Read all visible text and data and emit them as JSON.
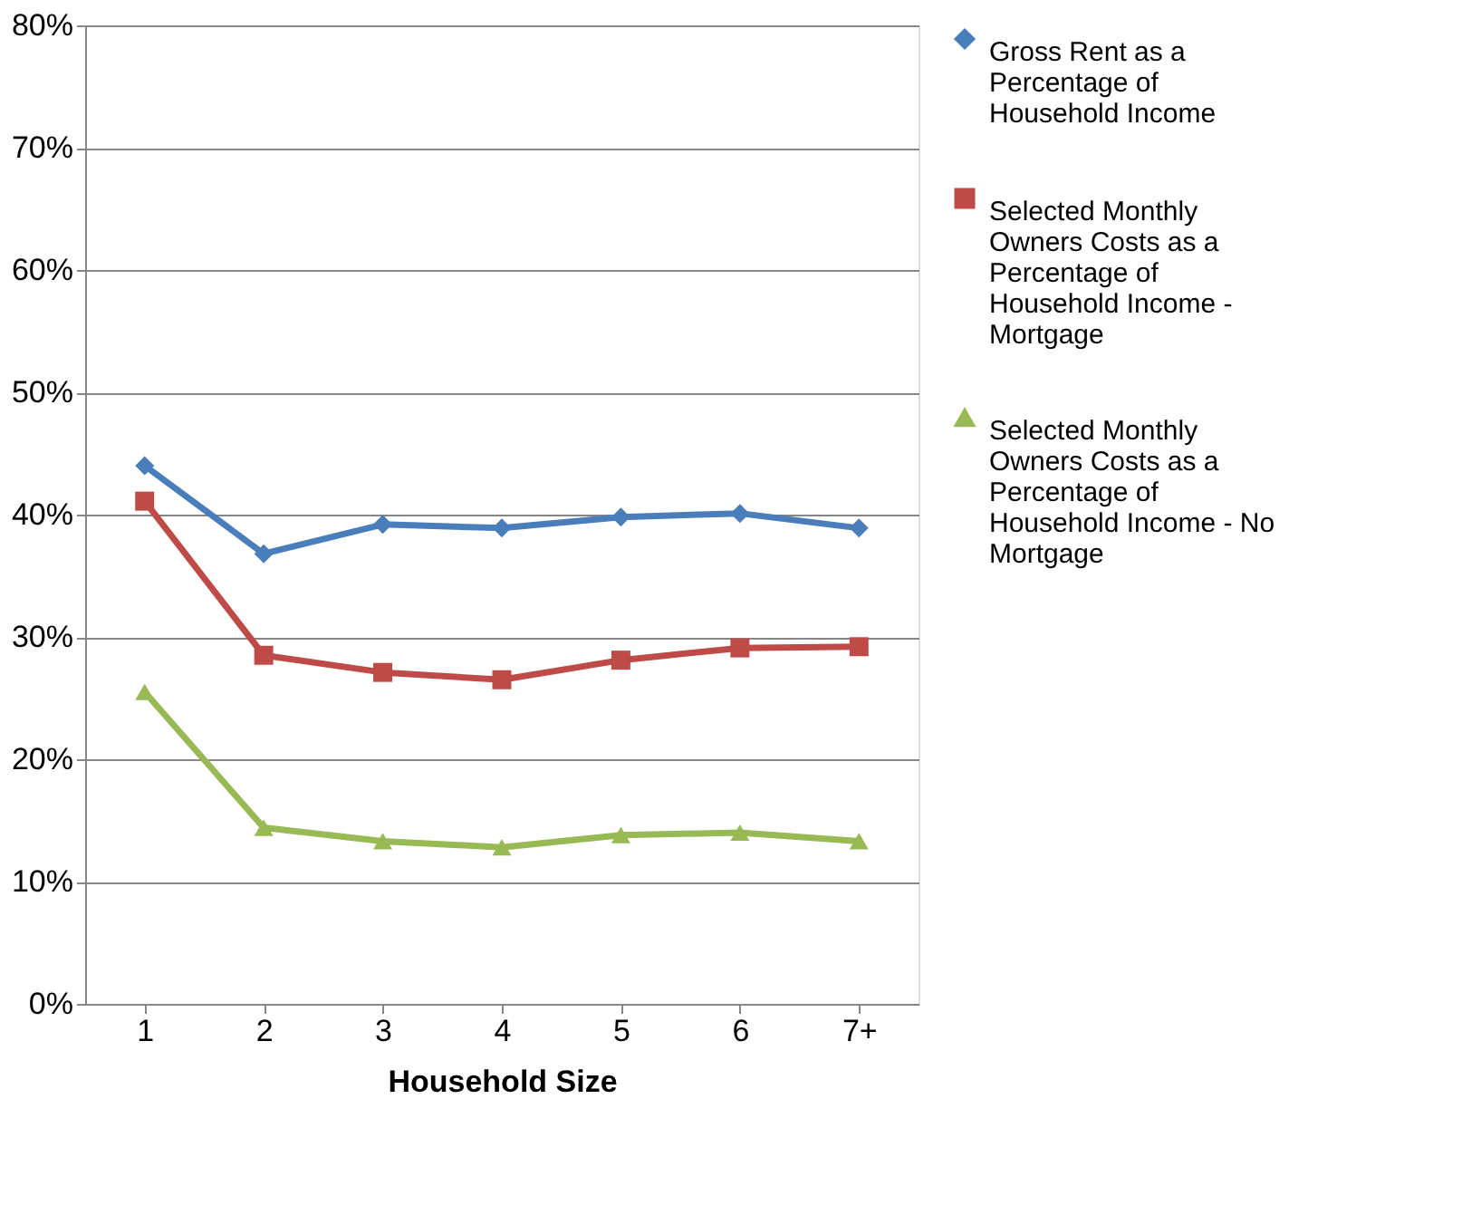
{
  "chart_data": {
    "type": "line",
    "xlabel": "Household Size",
    "categories": [
      "1",
      "2",
      "3",
      "4",
      "5",
      "6",
      "7+"
    ],
    "series": [
      {
        "name": "Gross Rent as a Percentage of Household Income",
        "color": "#4a7ebb",
        "marker": "diamond",
        "values": [
          44.0,
          36.8,
          39.2,
          38.9,
          39.8,
          40.1,
          38.9
        ]
      },
      {
        "name": "Selected Monthly Owners Costs as a Percentage of Household Income - Mortgage",
        "color": "#be4b48",
        "marker": "square",
        "values": [
          41.1,
          28.5,
          27.1,
          26.5,
          28.1,
          29.1,
          29.2
        ]
      },
      {
        "name": "Selected Monthly Owners Costs as a Percentage of Household Income - No Mortgage",
        "color": "#98b954",
        "marker": "triangle",
        "values": [
          25.5,
          14.4,
          13.3,
          12.8,
          13.8,
          14.0,
          13.3
        ]
      }
    ],
    "ylim": [
      0,
      80
    ],
    "yticks": [
      {
        "value": 0,
        "label": "0%"
      },
      {
        "value": 10,
        "label": "10%"
      },
      {
        "value": 20,
        "label": "20%"
      },
      {
        "value": 30,
        "label": "30%"
      },
      {
        "value": 40,
        "label": "40%"
      },
      {
        "value": 50,
        "label": "50%"
      },
      {
        "value": 60,
        "label": "60%"
      },
      {
        "value": 70,
        "label": "70%"
      },
      {
        "value": 80,
        "label": "80%"
      }
    ],
    "grid": "y",
    "legend": "right",
    "line_style": "solid"
  }
}
